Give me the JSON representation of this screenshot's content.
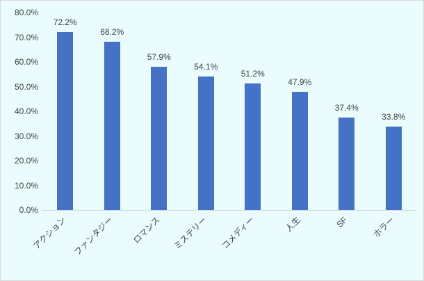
{
  "chart_data": {
    "type": "bar",
    "title": "",
    "xlabel": "",
    "ylabel": "",
    "categories": [
      "アクション",
      "ファンタジー",
      "ロマンス",
      "ミステリー",
      "コメディー",
      "人生",
      "SF",
      "ホラー"
    ],
    "values": [
      72.2,
      68.2,
      57.9,
      54.1,
      51.2,
      47.9,
      37.4,
      33.8
    ],
    "data_labels": [
      "72.2%",
      "68.2%",
      "57.9%",
      "54.1%",
      "51.2%",
      "47.9%",
      "37.4%",
      "33.8%"
    ],
    "ylim": [
      0,
      80
    ],
    "ytick_step": 10,
    "ytick_labels": [
      "0.0%",
      "10.0%",
      "20.0%",
      "30.0%",
      "40.0%",
      "50.0%",
      "60.0%",
      "70.0%",
      "80.0%"
    ],
    "grid": false,
    "legend": false,
    "colors": {
      "bar": "#4472c4",
      "background": "#eafcfd",
      "border": "#d9d9d9",
      "axis_line": "#d3dcdd",
      "text": "#404040"
    }
  }
}
